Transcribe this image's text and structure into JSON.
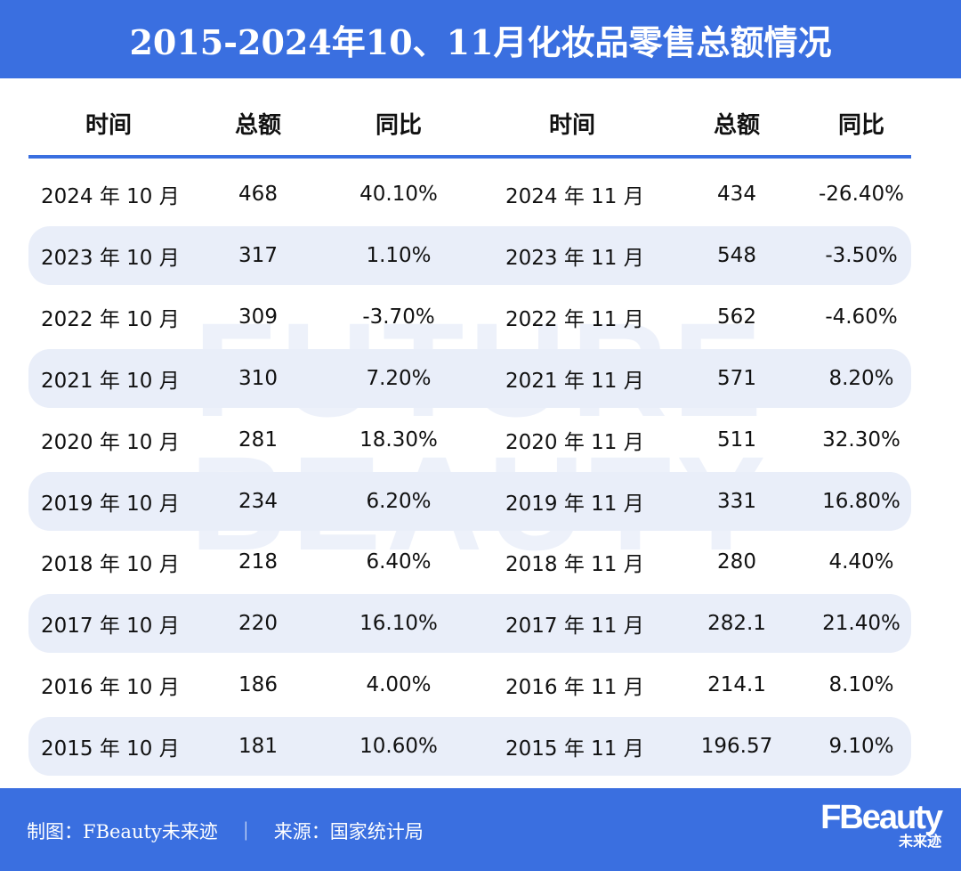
{
  "title": "2015-2024年10、11月化妆品零售总额情况",
  "watermark": [
    "FUTURE",
    "BEAUTY"
  ],
  "headers": [
    "时间",
    "总额",
    "同比",
    "时间",
    "总额",
    "同比"
  ],
  "rows": [
    {
      "t1": "2024 年 10 月",
      "a1": "468",
      "y1": "40.10%",
      "t2": "2024 年 11 月",
      "a2": "434",
      "y2": "-26.40%"
    },
    {
      "t1": "2023 年 10 月",
      "a1": "317",
      "y1": "1.10%",
      "t2": "2023 年 11 月",
      "a2": "548",
      "y2": "-3.50%"
    },
    {
      "t1": "2022 年 10 月",
      "a1": "309",
      "y1": "-3.70%",
      "t2": "2022 年 11 月",
      "a2": "562",
      "y2": "-4.60%"
    },
    {
      "t1": "2021 年 10 月",
      "a1": "310",
      "y1": "7.20%",
      "t2": "2021 年 11 月",
      "a2": "571",
      "y2": "8.20%"
    },
    {
      "t1": "2020 年 10 月",
      "a1": "281",
      "y1": "18.30%",
      "t2": "2020 年 11 月",
      "a2": "511",
      "y2": "32.30%"
    },
    {
      "t1": "2019 年 10 月",
      "a1": "234",
      "y1": "6.20%",
      "t2": "2019 年 11 月",
      "a2": "331",
      "y2": "16.80%"
    },
    {
      "t1": "2018 年 10 月",
      "a1": "218",
      "y1": "6.40%",
      "t2": "2018 年 11 月",
      "a2": "280",
      "y2": "4.40%"
    },
    {
      "t1": "2017 年 10 月",
      "a1": "220",
      "y1": "16.10%",
      "t2": "2017 年 11 月",
      "a2": "282.1",
      "y2": "21.40%"
    },
    {
      "t1": "2016 年 10 月",
      "a1": "186",
      "y1": "4.00%",
      "t2": "2016 年 11 月",
      "a2": "214.1",
      "y2": "8.10%"
    },
    {
      "t1": "2015 年 10 月",
      "a1": "181",
      "y1": "10.60%",
      "t2": "2015 年 11 月",
      "a2": "196.57",
      "y2": "9.10%"
    }
  ],
  "footer": {
    "credit": "制图：FBeauty未来迹　｜　来源：国家统计局",
    "logo_main": "FBeauty",
    "logo_sub": "未来迹"
  },
  "colors": {
    "brand": "#3a6fe0",
    "stripe": "#e9eef9"
  }
}
